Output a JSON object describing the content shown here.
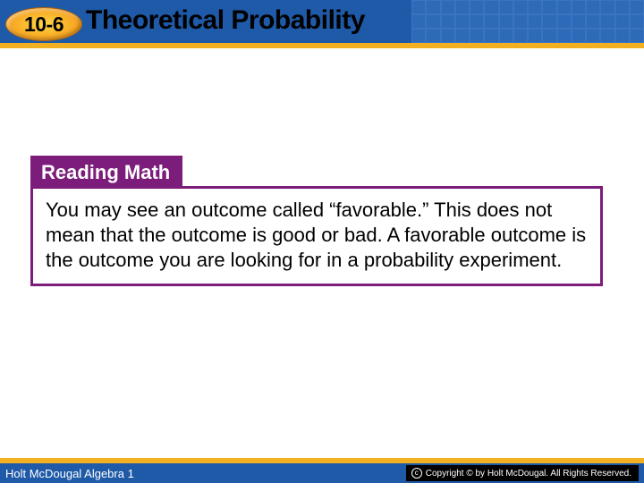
{
  "header": {
    "lesson_number": "10-6",
    "title": "Theoretical Probability",
    "bar_color": "#1e5aa8",
    "accent_color": "#f2b020",
    "badge_gradient_start": "#ffd843",
    "badge_gradient_mid": "#f7a823",
    "badge_gradient_end": "#d87710"
  },
  "callout": {
    "tab_label": "Reading Math",
    "tab_bg": "#7c1d7c",
    "tab_fg": "#ffffff",
    "body_text": "You may see an outcome called “favorable.” This does not mean that the outcome is good or bad. A favorable outcome is the outcome you are looking for in a probability experiment.",
    "body_fontsize": 22,
    "border_color": "#7c1d7c"
  },
  "footer": {
    "left_text": "Holt McDougal Algebra 1",
    "right_text": "Copyright © by Holt McDougal. All Rights Reserved.",
    "bar_color": "#1e5aa8",
    "accent_color": "#f2b020"
  }
}
